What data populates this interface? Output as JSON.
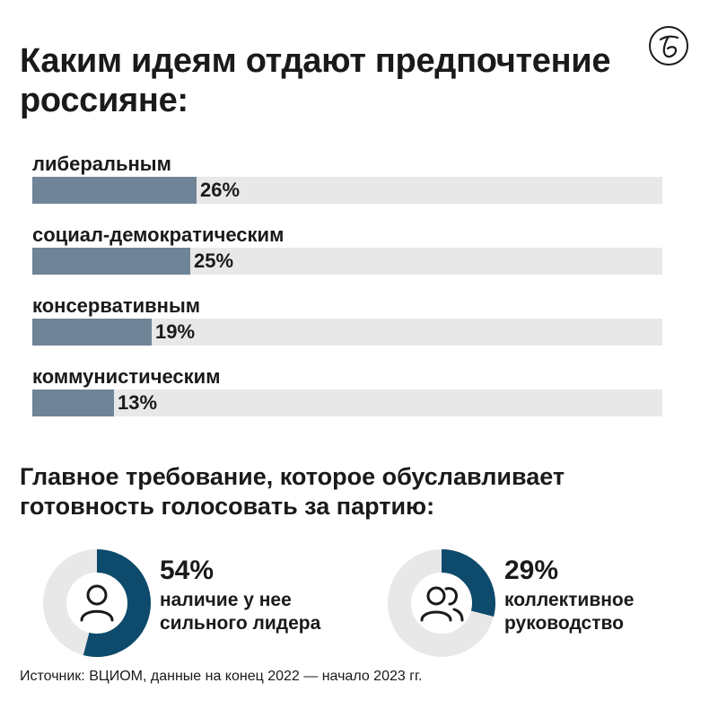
{
  "title": "Каким идеям отдают предпочтение россияне:",
  "subtitle": "Главное требование, которое обуславливает готовность голосовать за партию:",
  "source": "Источник: ВЦИОМ, данные на конец 2022 — начало 2023 гг.",
  "colors": {
    "bar_fill": "#6f8497",
    "bar_track": "#e8e8e8",
    "donut_fill": "#0d4a6b",
    "donut_track": "#e8e8e8"
  },
  "chart_data": [
    {
      "type": "bar",
      "orientation": "horizontal",
      "categories": [
        "либеральным",
        "социал-демократическим",
        "консервативным",
        "коммунистическим"
      ],
      "values": [
        26,
        25,
        19,
        13
      ],
      "value_labels": [
        "26%",
        "25%",
        "19%",
        "13%"
      ],
      "xlim": [
        0,
        100
      ],
      "grid": false
    },
    {
      "type": "pie",
      "variant": "donut",
      "items": [
        {
          "value": 54,
          "value_label": "54%",
          "label": "наличие у нее сильного лидера",
          "icon": "person-icon"
        },
        {
          "value": 29,
          "value_label": "29%",
          "label": "коллективное руководство",
          "icon": "group-icon"
        }
      ]
    }
  ]
}
